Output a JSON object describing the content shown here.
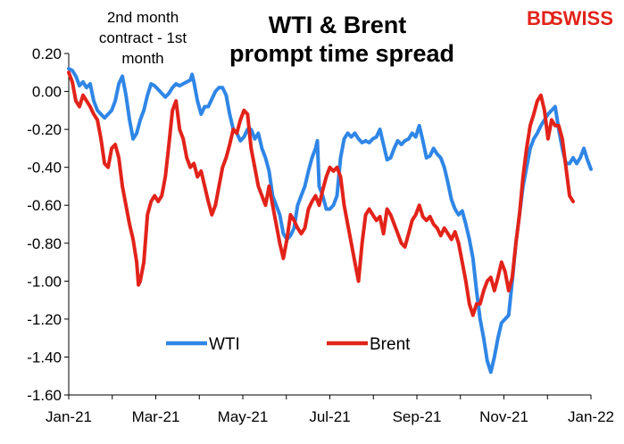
{
  "header": {
    "title_line1": "WTI & Brent",
    "title_line2": "prompt time spread",
    "note_line1": "2nd month",
    "note_line2": "contract - 1st",
    "note_line3": "month",
    "logo_text_a": "BD",
    "logo_text_b": "SWISS",
    "logo_colors": {
      "bd": "#e2231a",
      "swiss": "#e2231a"
    }
  },
  "chart_data": {
    "type": "line",
    "title": "WTI & Brent prompt time spread",
    "ylim": [
      -1.6,
      0.2
    ],
    "yticks": [
      "0.20",
      "0.00",
      "-0.20",
      "-0.40",
      "-0.60",
      "-0.80",
      "-1.00",
      "-1.20",
      "-1.40",
      "-1.60"
    ],
    "xticks": [
      "Jan-21",
      "Mar-21",
      "May-21",
      "Jul-21",
      "Sep-21",
      "Nov-21",
      "Jan-22"
    ],
    "legend_position": "bottom-left inside plot",
    "grid": false,
    "series": [
      {
        "name": "WTI",
        "color": "#2f86e6",
        "points": [
          [
            0,
            0.12
          ],
          [
            2,
            0.11
          ],
          [
            4,
            0.08
          ],
          [
            6,
            0.03
          ],
          [
            8,
            0.05
          ],
          [
            10,
            0.02
          ],
          [
            12,
            0.04
          ],
          [
            14,
            -0.05
          ],
          [
            16,
            -0.1
          ],
          [
            18,
            -0.12
          ],
          [
            20,
            -0.14
          ],
          [
            22,
            -0.12
          ],
          [
            24,
            -0.1
          ],
          [
            26,
            -0.05
          ],
          [
            28,
            0.04
          ],
          [
            30,
            0.08
          ],
          [
            32,
            -0.02
          ],
          [
            34,
            -0.15
          ],
          [
            36,
            -0.25
          ],
          [
            38,
            -0.22
          ],
          [
            40,
            -0.15
          ],
          [
            42,
            -0.1
          ],
          [
            44,
            -0.02
          ],
          [
            46,
            0.04
          ],
          [
            48,
            0.03
          ],
          [
            50,
            0.01
          ],
          [
            52,
            -0.01
          ],
          [
            54,
            -0.03
          ],
          [
            56,
            -0.01
          ],
          [
            58,
            0.02
          ],
          [
            60,
            0.04
          ],
          [
            62,
            0.03
          ],
          [
            64,
            0.04
          ],
          [
            66,
            0.05
          ],
          [
            68,
            0.06
          ],
          [
            69,
            0.09
          ],
          [
            70,
            0.05
          ],
          [
            72,
            -0.05
          ],
          [
            74,
            -0.12
          ],
          [
            76,
            -0.08
          ],
          [
            78,
            -0.08
          ],
          [
            80,
            -0.04
          ],
          [
            82,
            0.0
          ],
          [
            84,
            0.02
          ],
          [
            86,
            0.02
          ],
          [
            88,
            -0.02
          ],
          [
            90,
            -0.12
          ],
          [
            92,
            -0.2
          ],
          [
            94,
            -0.22
          ],
          [
            96,
            -0.26
          ],
          [
            98,
            -0.24
          ],
          [
            100,
            -0.2
          ],
          [
            102,
            -0.2
          ],
          [
            104,
            -0.25
          ],
          [
            106,
            -0.22
          ],
          [
            108,
            -0.3
          ],
          [
            110,
            -0.35
          ],
          [
            112,
            -0.42
          ],
          [
            114,
            -0.55
          ],
          [
            116,
            -0.6
          ],
          [
            118,
            -0.65
          ],
          [
            120,
            -0.75
          ],
          [
            122,
            -0.78
          ],
          [
            124,
            -0.76
          ],
          [
            126,
            -0.72
          ],
          [
            128,
            -0.6
          ],
          [
            130,
            -0.55
          ],
          [
            132,
            -0.5
          ],
          [
            134,
            -0.42
          ],
          [
            136,
            -0.35
          ],
          [
            138,
            -0.3
          ],
          [
            139,
            -0.26
          ],
          [
            140,
            -0.5
          ],
          [
            142,
            -0.55
          ],
          [
            144,
            -0.62
          ],
          [
            146,
            -0.62
          ],
          [
            148,
            -0.6
          ],
          [
            150,
            -0.55
          ],
          [
            152,
            -0.35
          ],
          [
            154,
            -0.25
          ],
          [
            156,
            -0.22
          ],
          [
            158,
            -0.24
          ],
          [
            160,
            -0.22
          ],
          [
            162,
            -0.25
          ],
          [
            164,
            -0.27
          ],
          [
            166,
            -0.26
          ],
          [
            168,
            -0.27
          ],
          [
            170,
            -0.25
          ],
          [
            172,
            -0.24
          ],
          [
            174,
            -0.2
          ],
          [
            176,
            -0.28
          ],
          [
            178,
            -0.36
          ],
          [
            180,
            -0.35
          ],
          [
            182,
            -0.3
          ],
          [
            184,
            -0.26
          ],
          [
            186,
            -0.28
          ],
          [
            188,
            -0.26
          ],
          [
            190,
            -0.25
          ],
          [
            192,
            -0.22
          ],
          [
            194,
            -0.24
          ],
          [
            196,
            -0.18
          ],
          [
            198,
            -0.26
          ],
          [
            200,
            -0.35
          ],
          [
            202,
            -0.34
          ],
          [
            204,
            -0.3
          ],
          [
            206,
            -0.33
          ],
          [
            208,
            -0.35
          ],
          [
            210,
            -0.4
          ],
          [
            212,
            -0.48
          ],
          [
            214,
            -0.57
          ],
          [
            216,
            -0.62
          ],
          [
            218,
            -0.65
          ],
          [
            220,
            -0.63
          ],
          [
            222,
            -0.7
          ],
          [
            224,
            -0.78
          ],
          [
            226,
            -0.88
          ],
          [
            228,
            -1.05
          ],
          [
            230,
            -1.2
          ],
          [
            232,
            -1.3
          ],
          [
            234,
            -1.42
          ],
          [
            236,
            -1.48
          ],
          [
            238,
            -1.4
          ],
          [
            240,
            -1.3
          ],
          [
            242,
            -1.22
          ],
          [
            244,
            -1.2
          ],
          [
            246,
            -1.18
          ],
          [
            248,
            -1.0
          ],
          [
            250,
            -0.8
          ],
          [
            252,
            -0.65
          ],
          [
            254,
            -0.5
          ],
          [
            256,
            -0.4
          ],
          [
            258,
            -0.3
          ],
          [
            260,
            -0.25
          ],
          [
            262,
            -0.22
          ],
          [
            264,
            -0.18
          ],
          [
            266,
            -0.15
          ],
          [
            268,
            -0.12
          ],
          [
            270,
            -0.1
          ],
          [
            272,
            -0.08
          ],
          [
            274,
            -0.2
          ],
          [
            276,
            -0.3
          ],
          [
            278,
            -0.38
          ],
          [
            280,
            -0.38
          ],
          [
            282,
            -0.35
          ],
          [
            284,
            -0.38
          ],
          [
            286,
            -0.35
          ],
          [
            288,
            -0.3
          ],
          [
            290,
            -0.36
          ],
          [
            292,
            -0.41
          ]
        ]
      },
      {
        "name": "Brent",
        "color": "#e2231a",
        "points": [
          [
            0,
            0.1
          ],
          [
            2,
            0.05
          ],
          [
            4,
            -0.05
          ],
          [
            6,
            -0.08
          ],
          [
            8,
            -0.02
          ],
          [
            10,
            -0.05
          ],
          [
            12,
            -0.08
          ],
          [
            14,
            -0.12
          ],
          [
            16,
            -0.15
          ],
          [
            18,
            -0.25
          ],
          [
            20,
            -0.38
          ],
          [
            22,
            -0.4
          ],
          [
            24,
            -0.3
          ],
          [
            26,
            -0.28
          ],
          [
            28,
            -0.35
          ],
          [
            30,
            -0.5
          ],
          [
            32,
            -0.6
          ],
          [
            34,
            -0.7
          ],
          [
            36,
            -0.78
          ],
          [
            38,
            -0.9
          ],
          [
            39,
            -1.02
          ],
          [
            40,
            -1.0
          ],
          [
            42,
            -0.9
          ],
          [
            44,
            -0.65
          ],
          [
            46,
            -0.58
          ],
          [
            48,
            -0.55
          ],
          [
            50,
            -0.58
          ],
          [
            52,
            -0.55
          ],
          [
            54,
            -0.45
          ],
          [
            56,
            -0.28
          ],
          [
            58,
            -0.1
          ],
          [
            60,
            -0.05
          ],
          [
            62,
            -0.2
          ],
          [
            64,
            -0.25
          ],
          [
            66,
            -0.35
          ],
          [
            68,
            -0.4
          ],
          [
            70,
            -0.38
          ],
          [
            72,
            -0.45
          ],
          [
            74,
            -0.42
          ],
          [
            76,
            -0.5
          ],
          [
            78,
            -0.58
          ],
          [
            80,
            -0.65
          ],
          [
            82,
            -0.6
          ],
          [
            84,
            -0.5
          ],
          [
            86,
            -0.4
          ],
          [
            88,
            -0.35
          ],
          [
            90,
            -0.28
          ],
          [
            92,
            -0.2
          ],
          [
            94,
            -0.22
          ],
          [
            96,
            -0.15
          ],
          [
            98,
            -0.1
          ],
          [
            100,
            -0.12
          ],
          [
            102,
            -0.3
          ],
          [
            104,
            -0.4
          ],
          [
            106,
            -0.5
          ],
          [
            108,
            -0.55
          ],
          [
            110,
            -0.6
          ],
          [
            112,
            -0.5
          ],
          [
            114,
            -0.6
          ],
          [
            116,
            -0.7
          ],
          [
            118,
            -0.8
          ],
          [
            120,
            -0.88
          ],
          [
            122,
            -0.78
          ],
          [
            124,
            -0.65
          ],
          [
            126,
            -0.68
          ],
          [
            128,
            -0.72
          ],
          [
            130,
            -0.75
          ],
          [
            132,
            -0.72
          ],
          [
            134,
            -0.62
          ],
          [
            136,
            -0.58
          ],
          [
            138,
            -0.55
          ],
          [
            140,
            -0.6
          ],
          [
            142,
            -0.52
          ],
          [
            144,
            -0.45
          ],
          [
            146,
            -0.4
          ],
          [
            148,
            -0.42
          ],
          [
            150,
            -0.4
          ],
          [
            152,
            -0.45
          ],
          [
            154,
            -0.6
          ],
          [
            156,
            -0.7
          ],
          [
            158,
            -0.8
          ],
          [
            160,
            -0.9
          ],
          [
            162,
            -1.0
          ],
          [
            164,
            -0.8
          ],
          [
            166,
            -0.65
          ],
          [
            168,
            -0.62
          ],
          [
            170,
            -0.65
          ],
          [
            172,
            -0.68
          ],
          [
            174,
            -0.66
          ],
          [
            176,
            -0.75
          ],
          [
            178,
            -0.62
          ],
          [
            180,
            -0.65
          ],
          [
            182,
            -0.7
          ],
          [
            184,
            -0.75
          ],
          [
            186,
            -0.8
          ],
          [
            188,
            -0.82
          ],
          [
            190,
            -0.75
          ],
          [
            192,
            -0.68
          ],
          [
            194,
            -0.65
          ],
          [
            196,
            -0.6
          ],
          [
            198,
            -0.66
          ],
          [
            200,
            -0.68
          ],
          [
            202,
            -0.66
          ],
          [
            204,
            -0.7
          ],
          [
            206,
            -0.72
          ],
          [
            208,
            -0.76
          ],
          [
            210,
            -0.72
          ],
          [
            212,
            -0.75
          ],
          [
            214,
            -0.78
          ],
          [
            216,
            -0.74
          ],
          [
            218,
            -0.8
          ],
          [
            220,
            -0.9
          ],
          [
            222,
            -1.0
          ],
          [
            224,
            -1.12
          ],
          [
            226,
            -1.18
          ],
          [
            228,
            -1.12
          ],
          [
            230,
            -1.12
          ],
          [
            232,
            -1.05
          ],
          [
            234,
            -1.0
          ],
          [
            236,
            -0.98
          ],
          [
            238,
            -1.05
          ],
          [
            240,
            -0.98
          ],
          [
            242,
            -0.9
          ],
          [
            244,
            -0.95
          ],
          [
            246,
            -1.05
          ],
          [
            248,
            -0.98
          ],
          [
            250,
            -0.8
          ],
          [
            252,
            -0.65
          ],
          [
            254,
            -0.45
          ],
          [
            256,
            -0.3
          ],
          [
            258,
            -0.18
          ],
          [
            260,
            -0.12
          ],
          [
            262,
            -0.05
          ],
          [
            264,
            -0.02
          ],
          [
            266,
            -0.1
          ],
          [
            268,
            -0.25
          ],
          [
            270,
            -0.15
          ],
          [
            272,
            -0.18
          ],
          [
            274,
            -0.18
          ],
          [
            276,
            -0.25
          ],
          [
            278,
            -0.4
          ],
          [
            280,
            -0.55
          ],
          [
            282,
            -0.58
          ]
        ]
      }
    ]
  }
}
